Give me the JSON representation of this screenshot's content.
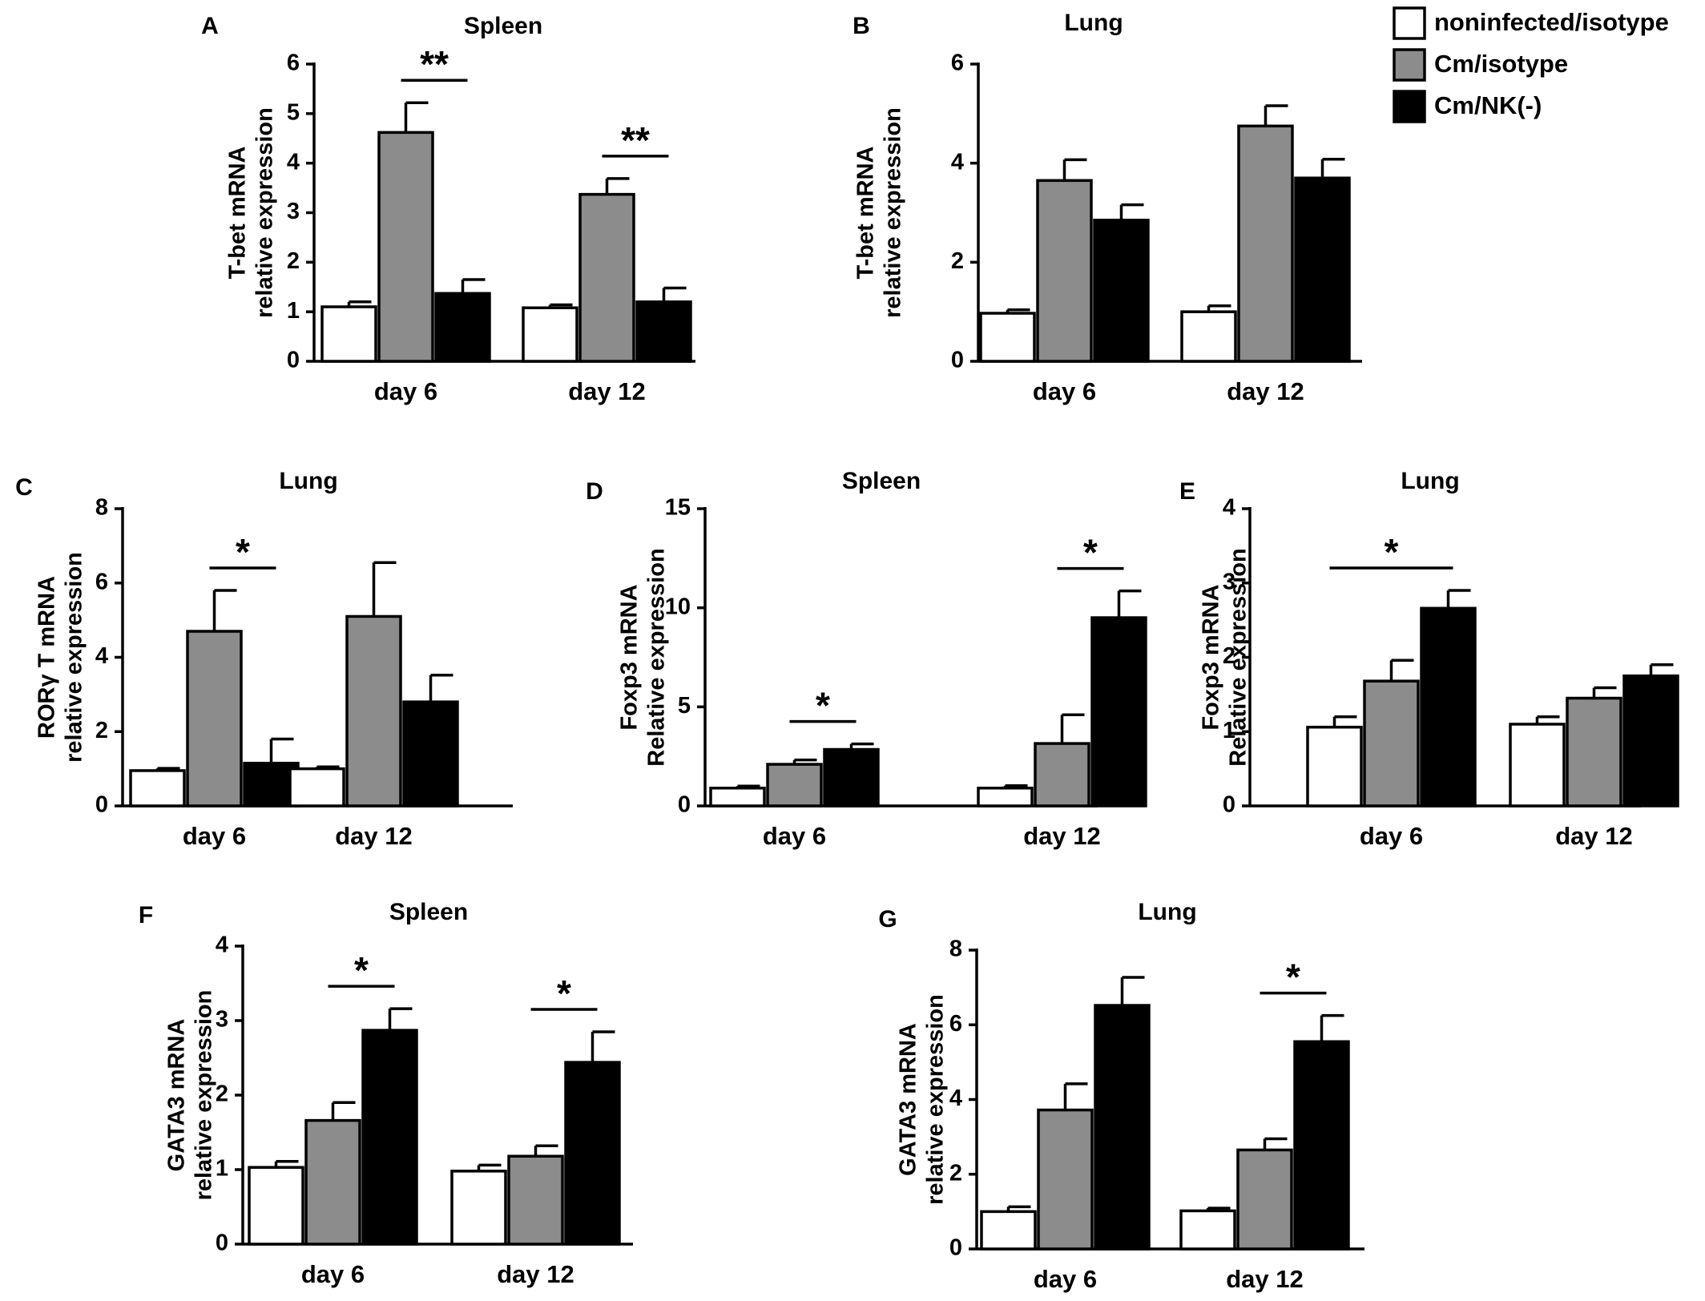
{
  "colors": {
    "noninfected_isotype": "#ffffff",
    "cm_isotype": "#8c8c8c",
    "cm_nk": "#000000",
    "axis": "#000000"
  },
  "legend": {
    "entries": [
      {
        "label": "noninfected/isotype",
        "color": "#ffffff"
      },
      {
        "label": "Cm/isotype",
        "color": "#8c8c8c"
      },
      {
        "label": "Cm/NK(-)",
        "color": "#000000"
      }
    ]
  },
  "chart_data": [
    {
      "panel": "A",
      "type": "bar",
      "title": "Spleen",
      "ylabel_lines": [
        "T-bet mRNA",
        "relative expression"
      ],
      "ylim": [
        0,
        6
      ],
      "yticks": [
        0,
        1,
        2,
        3,
        4,
        5,
        6
      ],
      "categories": [
        "day 6",
        "day 12"
      ],
      "series": [
        {
          "name": "noninfected/isotype",
          "values": [
            1.1,
            1.08
          ],
          "errors": [
            0.1,
            0.06
          ]
        },
        {
          "name": "Cm/isotype",
          "values": [
            4.62,
            3.37
          ],
          "errors": [
            0.6,
            0.32
          ]
        },
        {
          "name": "Cm/NK(-)",
          "values": [
            1.37,
            1.2
          ],
          "errors": [
            0.28,
            0.28
          ]
        }
      ],
      "significance": [
        {
          "category_index": 0,
          "from_series": 1,
          "to_series": 2,
          "label": "**"
        },
        {
          "category_index": 1,
          "from_series": 1,
          "to_series": 2,
          "label": "**"
        }
      ]
    },
    {
      "panel": "B",
      "type": "bar",
      "title": "Lung",
      "ylabel_lines": [
        "T-bet mRNA",
        "relative expression"
      ],
      "ylim": [
        0,
        6
      ],
      "yticks": [
        0,
        2,
        4,
        6
      ],
      "categories": [
        "day 6",
        "day 12"
      ],
      "series": [
        {
          "name": "noninfected/isotype",
          "values": [
            0.97,
            1.0
          ],
          "errors": [
            0.07,
            0.12
          ]
        },
        {
          "name": "Cm/isotype",
          "values": [
            3.65,
            4.75
          ],
          "errors": [
            0.42,
            0.41
          ]
        },
        {
          "name": "Cm/NK(-)",
          "values": [
            2.85,
            3.7
          ],
          "errors": [
            0.31,
            0.38
          ]
        }
      ],
      "significance": []
    },
    {
      "panel": "C",
      "type": "bar",
      "title": "Lung",
      "ylabel_lines": [
        "RORγ T  mRNA",
        "relative expression"
      ],
      "ylim": [
        0,
        8
      ],
      "yticks": [
        0,
        2,
        4,
        6,
        8
      ],
      "categories": [
        "day 6",
        "day 12"
      ],
      "series": [
        {
          "name": "noninfected/isotype",
          "values": [
            0.95,
            1.0
          ],
          "errors": [
            0.06,
            0.05
          ]
        },
        {
          "name": "Cm/isotype",
          "values": [
            4.7,
            5.1
          ],
          "errors": [
            1.1,
            1.45
          ]
        },
        {
          "name": "Cm/NK(-)",
          "values": [
            1.15,
            2.8
          ],
          "errors": [
            0.65,
            0.72
          ]
        }
      ],
      "significance": [
        {
          "category_index": 0,
          "from_series": 1,
          "to_series": 2,
          "label": "*"
        }
      ]
    },
    {
      "panel": "D",
      "type": "bar",
      "title": "Spleen",
      "ylabel_lines": [
        "Foxp3 mRNA",
        "Relative expression"
      ],
      "ylim": [
        0,
        15
      ],
      "yticks": [
        0,
        5,
        10,
        15
      ],
      "categories": [
        "day 6",
        "day 12"
      ],
      "series": [
        {
          "name": "noninfected/isotype",
          "values": [
            0.9,
            0.9
          ],
          "errors": [
            0.1,
            0.12
          ]
        },
        {
          "name": "Cm/isotype",
          "values": [
            2.1,
            3.15
          ],
          "errors": [
            0.22,
            1.45
          ]
        },
        {
          "name": "Cm/NK(-)",
          "values": [
            2.85,
            9.5
          ],
          "errors": [
            0.28,
            1.35
          ]
        }
      ],
      "significance": [
        {
          "category_index": 0,
          "from_series": 1,
          "to_series": 2,
          "label": "*"
        },
        {
          "category_index": 1,
          "from_series": 1,
          "to_series": 2,
          "label": "*"
        }
      ]
    },
    {
      "panel": "E",
      "type": "bar",
      "title": "Lung",
      "ylabel_lines": [
        "Foxp3 mRNA",
        "Relative expression"
      ],
      "ylim": [
        0,
        4
      ],
      "yticks": [
        0,
        1,
        2,
        3,
        4
      ],
      "categories": [
        "day 6",
        "day 12"
      ],
      "series": [
        {
          "name": "noninfected/isotype",
          "values": [
            1.06,
            1.1
          ],
          "errors": [
            0.14,
            0.1
          ]
        },
        {
          "name": "Cm/isotype",
          "values": [
            1.68,
            1.45
          ],
          "errors": [
            0.28,
            0.14
          ]
        },
        {
          "name": "Cm/NK(-)",
          "values": [
            2.66,
            1.75
          ],
          "errors": [
            0.24,
            0.15
          ]
        }
      ],
      "significance": [
        {
          "category_index": 0,
          "from_series": 0,
          "to_series": 2,
          "label": "*"
        }
      ]
    },
    {
      "panel": "F",
      "type": "bar",
      "title": "Spleen",
      "ylabel_lines": [
        "GATA3 mRNA",
        "relative expression"
      ],
      "ylim": [
        0,
        4
      ],
      "yticks": [
        0,
        1,
        2,
        3,
        4
      ],
      "categories": [
        "day 6",
        "day 12"
      ],
      "series": [
        {
          "name": "noninfected/isotype",
          "values": [
            1.03,
            0.98
          ],
          "errors": [
            0.08,
            0.08
          ]
        },
        {
          "name": "Cm/isotype",
          "values": [
            1.66,
            1.18
          ],
          "errors": [
            0.24,
            0.14
          ]
        },
        {
          "name": "Cm/NK(-)",
          "values": [
            2.87,
            2.44
          ],
          "errors": [
            0.29,
            0.41
          ]
        }
      ],
      "significance": [
        {
          "category_index": 0,
          "from_series": 1,
          "to_series": 2,
          "label": "*"
        },
        {
          "category_index": 1,
          "from_series": 1,
          "to_series": 2,
          "label": "*"
        }
      ]
    },
    {
      "panel": "G",
      "type": "bar",
      "title": "Lung",
      "ylabel_lines": [
        "GATA3 mRNA",
        "relative expression"
      ],
      "ylim": [
        0,
        8
      ],
      "yticks": [
        0,
        2,
        4,
        6,
        8
      ],
      "categories": [
        "day 6",
        "day 12"
      ],
      "series": [
        {
          "name": "noninfected/isotype",
          "values": [
            1.0,
            1.02
          ],
          "errors": [
            0.13,
            0.07
          ]
        },
        {
          "name": "Cm/isotype",
          "values": [
            3.72,
            2.65
          ],
          "errors": [
            0.7,
            0.3
          ]
        },
        {
          "name": "Cm/NK(-)",
          "values": [
            6.52,
            5.55
          ],
          "errors": [
            0.75,
            0.7
          ]
        }
      ],
      "significance": [
        {
          "category_index": 1,
          "from_series": 1,
          "to_series": 2,
          "label": "*"
        }
      ]
    }
  ]
}
